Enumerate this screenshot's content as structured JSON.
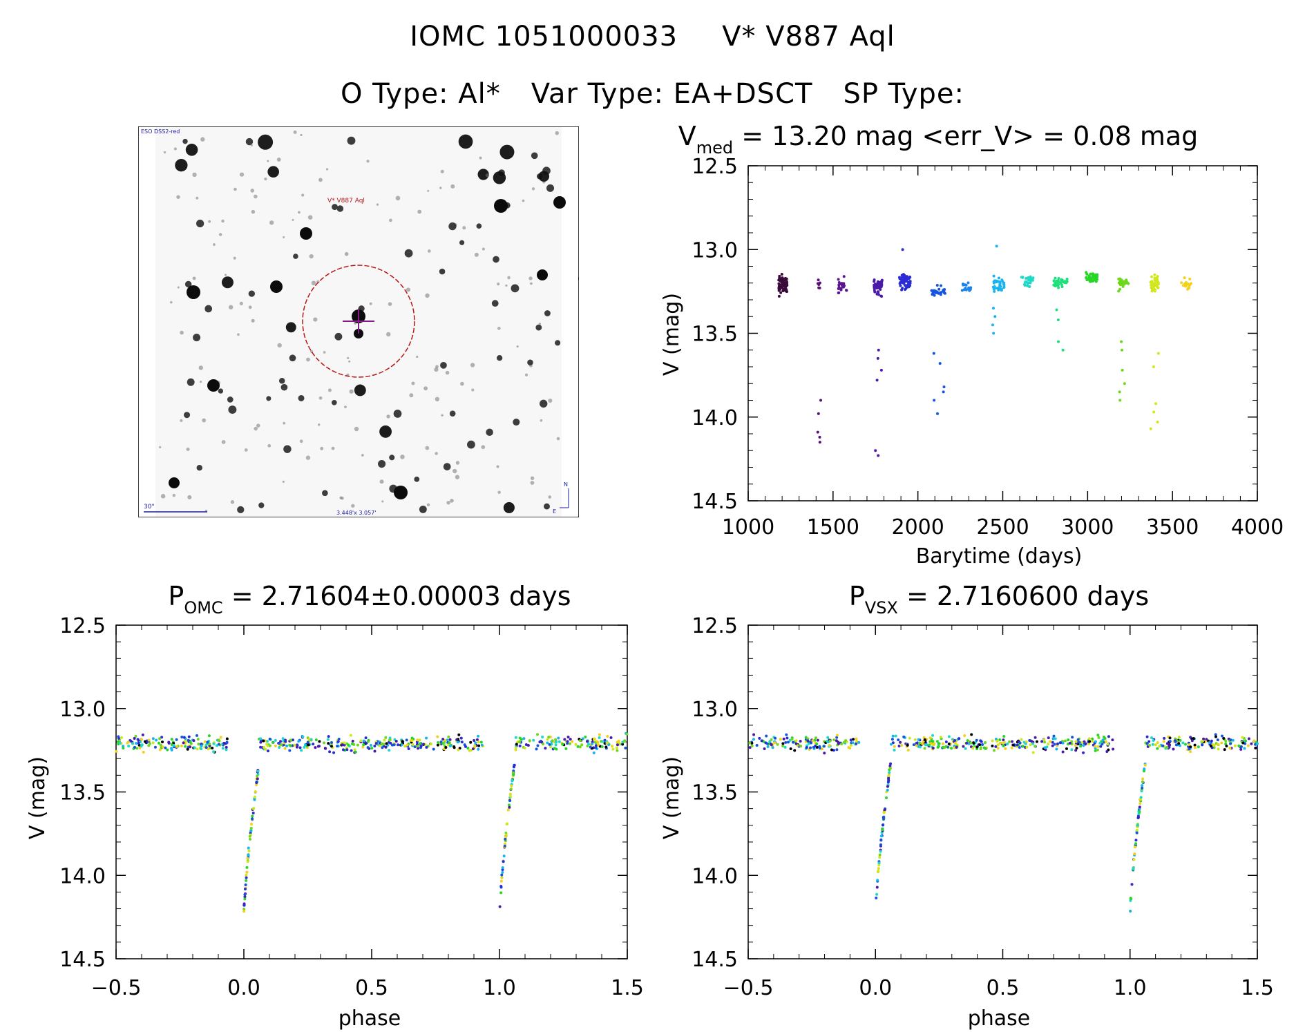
{
  "header": {
    "line1_left": "IOMC 1051000033",
    "line1_right": "V* V887 Aql",
    "o_type": "O Type: Al*",
    "var_type": "Var Type: EA+DSCT",
    "sp_type": "SP Type:"
  },
  "image_panel": {
    "survey_label": "ESO DSS2-red",
    "object_label": "V* V887 Aql",
    "scale_label": "30\"",
    "fov_label": "3.448'x 3.057'",
    "north_label": "N",
    "east_label": "E"
  },
  "chart_data": [
    {
      "type": "scatter",
      "id": "lightcurve",
      "title_main": "V",
      "title_sub": "med",
      "title_rest": " = 13.20 mag <err_V> = 0.08 mag",
      "xlabel": "Barytime (days)",
      "ylabel": "V (mag)",
      "xlim": [
        1000,
        4000
      ],
      "ylim": [
        12.5,
        14.5
      ],
      "y_inverted": true,
      "xticks": [
        1000,
        1500,
        2000,
        2500,
        3000,
        3500,
        4000
      ],
      "xtick_labels": [
        "1000",
        "1500",
        "2000",
        "2500",
        "3000",
        "3500",
        "4000"
      ],
      "yticks": [
        12.5,
        13.0,
        13.5,
        14.0,
        14.5
      ],
      "ytick_labels": [
        "12.5",
        "13.0",
        "13.5",
        "14.0",
        "14.5"
      ],
      "color_scale": "time-coded (black → purple → blue → cyan → green → yellow)",
      "groups": [
        {
          "x": [
            1180,
            1230
          ],
          "base": 13.21,
          "spread": 0.09,
          "n": 70,
          "color": "#3a0a3a",
          "dips": []
        },
        {
          "x": [
            1410,
            1430
          ],
          "base": 13.22,
          "spread": 0.06,
          "n": 6,
          "color": "#5a0f78",
          "dips": [
            13.9,
            13.98,
            14.09,
            14.12,
            14.15
          ]
        },
        {
          "x": [
            1520,
            1600
          ],
          "base": 13.22,
          "spread": 0.08,
          "n": 22,
          "color": "#5c1490",
          "dips": []
        },
        {
          "x": [
            1740,
            1790
          ],
          "base": 13.22,
          "spread": 0.08,
          "n": 55,
          "color": "#4a1aa8",
          "dips": [
            13.6,
            13.65,
            13.72,
            13.78,
            14.2,
            14.23
          ]
        },
        {
          "x": [
            1890,
            1960
          ],
          "base": 13.19,
          "spread": 0.08,
          "n": 50,
          "color": "#2b2bd6",
          "dips": [
            13.0
          ]
        },
        {
          "x": [
            2080,
            2160
          ],
          "base": 13.25,
          "spread": 0.07,
          "n": 24,
          "color": "#1454e0",
          "dips": [
            13.62,
            13.68,
            13.82,
            13.85,
            13.9,
            13.98
          ]
        },
        {
          "x": [
            2260,
            2320
          ],
          "base": 13.23,
          "spread": 0.05,
          "n": 14,
          "color": "#1a84e6",
          "dips": []
        },
        {
          "x": [
            2440,
            2510
          ],
          "base": 13.22,
          "spread": 0.08,
          "n": 34,
          "color": "#18b4ee",
          "dips": [
            13.35,
            13.4,
            13.45,
            13.5,
            12.98
          ]
        },
        {
          "x": [
            2610,
            2680
          ],
          "base": 13.19,
          "spread": 0.06,
          "n": 22,
          "color": "#1ed8c8",
          "dips": []
        },
        {
          "x": [
            2800,
            2880
          ],
          "base": 13.2,
          "spread": 0.07,
          "n": 30,
          "color": "#1ee07a",
          "dips": [
            13.36,
            13.42,
            13.55,
            13.6
          ]
        },
        {
          "x": [
            2990,
            3060
          ],
          "base": 13.17,
          "spread": 0.06,
          "n": 40,
          "color": "#28d628",
          "dips": []
        },
        {
          "x": [
            3180,
            3240
          ],
          "base": 13.2,
          "spread": 0.06,
          "n": 30,
          "color": "#6ed81e",
          "dips": [
            13.55,
            13.6,
            13.72,
            13.8,
            13.85,
            13.9
          ]
        },
        {
          "x": [
            3370,
            3420
          ],
          "base": 13.2,
          "spread": 0.08,
          "n": 45,
          "color": "#d2e61c",
          "dips": [
            13.62,
            13.7,
            13.92,
            13.97,
            14.03,
            14.07
          ]
        },
        {
          "x": [
            3550,
            3610
          ],
          "base": 13.2,
          "spread": 0.06,
          "n": 22,
          "color": "#f2d21a",
          "dips": []
        }
      ]
    },
    {
      "type": "scatter",
      "id": "phase_omc",
      "title_main": "P",
      "title_sub": "OMC",
      "title_rest": " = 2.71604±0.00003 days",
      "xlabel": "phase",
      "ylabel": "V (mag)",
      "xlim": [
        -0.5,
        1.5
      ],
      "ylim": [
        12.5,
        14.5
      ],
      "y_inverted": true,
      "xticks": [
        -0.5,
        0.0,
        0.5,
        1.0,
        1.5
      ],
      "xtick_labels": [
        "−0.5",
        "0.0",
        "0.5",
        "1.0",
        "1.5"
      ],
      "yticks": [
        12.5,
        13.0,
        13.5,
        14.0,
        14.5
      ],
      "ytick_labels": [
        "12.5",
        "13.0",
        "13.5",
        "14.0",
        "14.5"
      ],
      "phase_model": {
        "baseline": 13.21,
        "scatter": 0.09,
        "eclipse_phase": 0.0,
        "eclipse_depth_mag": 14.24,
        "ingress_width": 0.06
      },
      "colors": [
        "#000000",
        "#4a1aa8",
        "#2b2bd6",
        "#1454e0",
        "#18b4ee",
        "#1ed8c8",
        "#28d628",
        "#6ed81e",
        "#d2e61c",
        "#f2d21a"
      ]
    },
    {
      "type": "scatter",
      "id": "phase_vsx",
      "title_main": "P",
      "title_sub": "VSX",
      "title_rest": " = 2.7160600 days",
      "xlabel": "phase",
      "ylabel": "V (mag)",
      "xlim": [
        -0.5,
        1.5
      ],
      "ylim": [
        12.5,
        14.5
      ],
      "y_inverted": true,
      "xticks": [
        -0.5,
        0.0,
        0.5,
        1.0,
        1.5
      ],
      "xtick_labels": [
        "−0.5",
        "0.0",
        "0.5",
        "1.0",
        "1.5"
      ],
      "yticks": [
        12.5,
        13.0,
        13.5,
        14.0,
        14.5
      ],
      "ytick_labels": [
        "12.5",
        "13.0",
        "13.5",
        "14.0",
        "14.5"
      ],
      "phase_model": {
        "baseline": 13.21,
        "scatter": 0.09,
        "eclipse_phase": 0.0,
        "eclipse_depth_mag": 14.24,
        "ingress_width": 0.06
      },
      "colors": [
        "#000000",
        "#4a1aa8",
        "#2b2bd6",
        "#1454e0",
        "#18b4ee",
        "#1ed8c8",
        "#28d628",
        "#6ed81e",
        "#d2e61c",
        "#f2d21a"
      ]
    }
  ]
}
